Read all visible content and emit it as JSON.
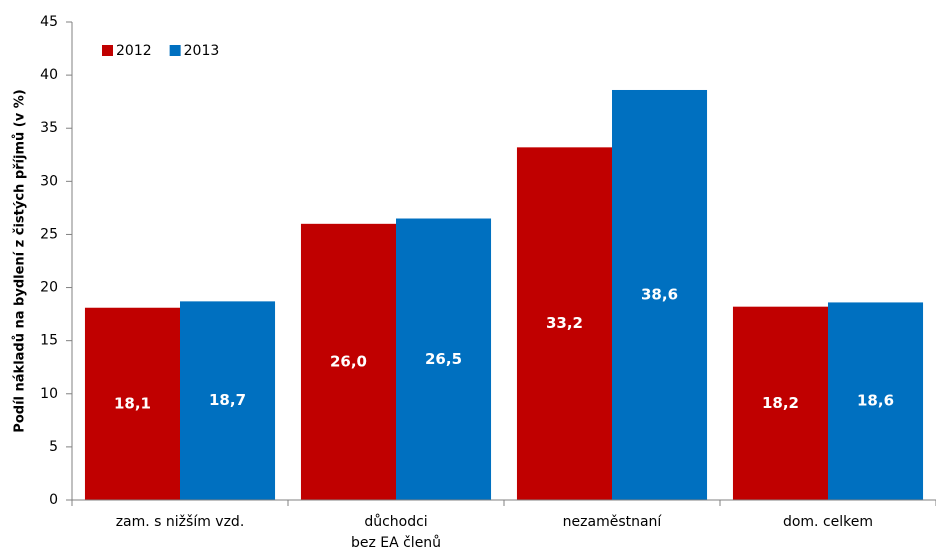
{
  "chart_data": {
    "type": "bar",
    "ylabel": "Podíl nákladů  na bydlení z čistých příjmů (v %)",
    "categories": [
      "zam. s nižším vzd.",
      "důchodci\nbez EA členů",
      "nezaměstnaní",
      "dom. celkem"
    ],
    "series": [
      {
        "name": "2012",
        "color": "#c00000",
        "values": [
          18.1,
          26.0,
          33.2,
          18.2
        ],
        "value_labels": [
          "18,1",
          "26,0",
          "33,2",
          "18,2"
        ]
      },
      {
        "name": "2013",
        "color": "#0070c0",
        "values": [
          18.7,
          26.5,
          38.6,
          18.6
        ],
        "value_labels": [
          "18,7",
          "26,5",
          "38,6",
          "18,6"
        ]
      }
    ],
    "ylim": [
      0,
      45
    ],
    "yticks": [
      0,
      5,
      10,
      15,
      20,
      25,
      30,
      35,
      40,
      45
    ],
    "legend": "upper left"
  }
}
